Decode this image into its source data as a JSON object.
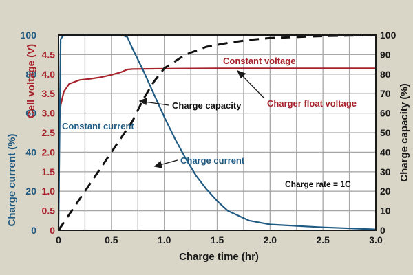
{
  "colors": {
    "background": "#d9d6c8",
    "plot_bg": "#ffffff",
    "grid": "#a8a8a8",
    "voltage": "#a8232c",
    "current": "#1f5a82",
    "capacity": "#111111",
    "text": "#1a1a1a"
  },
  "chart_data": {
    "type": "line",
    "title": "",
    "xlabel": "Charge time (hr)",
    "xlim": [
      0,
      3.0
    ],
    "x_ticks": [
      "0",
      "0.5",
      "1.0",
      "1.5",
      "2.0",
      "2.5",
      "3.0"
    ],
    "grid": true,
    "axes": {
      "left_outer": {
        "label": "Charge current (%)",
        "ticks": [
          "0",
          "20",
          "40",
          "60",
          "80",
          "100"
        ],
        "range": [
          0,
          100
        ],
        "color": "#1f5a82"
      },
      "left_inner": {
        "label": "Cell voltage (V)",
        "ticks": [
          "0",
          "0.5",
          "1.0",
          "1.5",
          "2.0",
          "2.5",
          "3.0",
          "3.5",
          "4.0",
          "4.5"
        ],
        "range": [
          0,
          5.0
        ],
        "color": "#a8232c"
      },
      "right": {
        "label": "Charge capacity (%)",
        "ticks": [
          "0",
          "10",
          "20",
          "30",
          "40",
          "50",
          "60",
          "70",
          "80",
          "90",
          "100"
        ],
        "range": [
          0,
          100
        ],
        "color": "#1a1a1a"
      }
    },
    "series": [
      {
        "name": "Cell voltage",
        "axis": "left_inner",
        "style": "solid",
        "color": "#a8232c",
        "x": [
          0,
          0.02,
          0.05,
          0.1,
          0.2,
          0.3,
          0.4,
          0.5,
          0.6,
          0.65,
          0.7,
          1.0,
          1.5,
          2.0,
          2.5,
          3.0
        ],
        "values": [
          2.5,
          3.2,
          3.55,
          3.75,
          3.85,
          3.88,
          3.92,
          3.98,
          4.06,
          4.12,
          4.13,
          4.14,
          4.15,
          4.15,
          4.15,
          4.15
        ]
      },
      {
        "name": "Charge current",
        "axis": "left_outer",
        "style": "solid",
        "color": "#1f5a82",
        "x": [
          0,
          0.02,
          0.05,
          0.6,
          0.65,
          0.7,
          0.8,
          0.9,
          1.0,
          1.1,
          1.2,
          1.3,
          1.4,
          1.5,
          1.6,
          1.8,
          2.0,
          2.5,
          3.0
        ],
        "values": [
          0,
          98,
          100,
          100,
          99,
          93,
          82,
          70,
          58,
          47,
          37,
          28,
          21,
          15,
          10,
          5,
          3,
          1.5,
          0.5
        ]
      },
      {
        "name": "Charge capacity",
        "axis": "right",
        "style": "dashed",
        "color": "#111111",
        "x": [
          0,
          0.2,
          0.4,
          0.6,
          0.7,
          0.8,
          0.9,
          1.0,
          1.2,
          1.4,
          1.6,
          1.8,
          2.0,
          2.5,
          3.0
        ],
        "values": [
          0,
          16,
          32,
          48,
          56,
          67,
          76,
          83,
          90,
          94,
          96,
          97.5,
          98.5,
          99.5,
          100
        ]
      }
    ],
    "annotations": [
      {
        "text": "Constant voltage",
        "color": "#a8232c"
      },
      {
        "text": "Charger float voltage",
        "color": "#a8232c",
        "arrow_to": [
          0.5,
          4.15
        ]
      },
      {
        "text": "Charge capacity",
        "color": "#111111",
        "arrow_to": [
          0.78,
          65
        ]
      },
      {
        "text": "Constant current",
        "color": "#1f5a82"
      },
      {
        "text": "Charge current",
        "color": "#1f5a82",
        "arrow_to": [
          0.93,
          65
        ]
      },
      {
        "text": "Charge rate = 1C",
        "color": "#111111"
      }
    ]
  }
}
